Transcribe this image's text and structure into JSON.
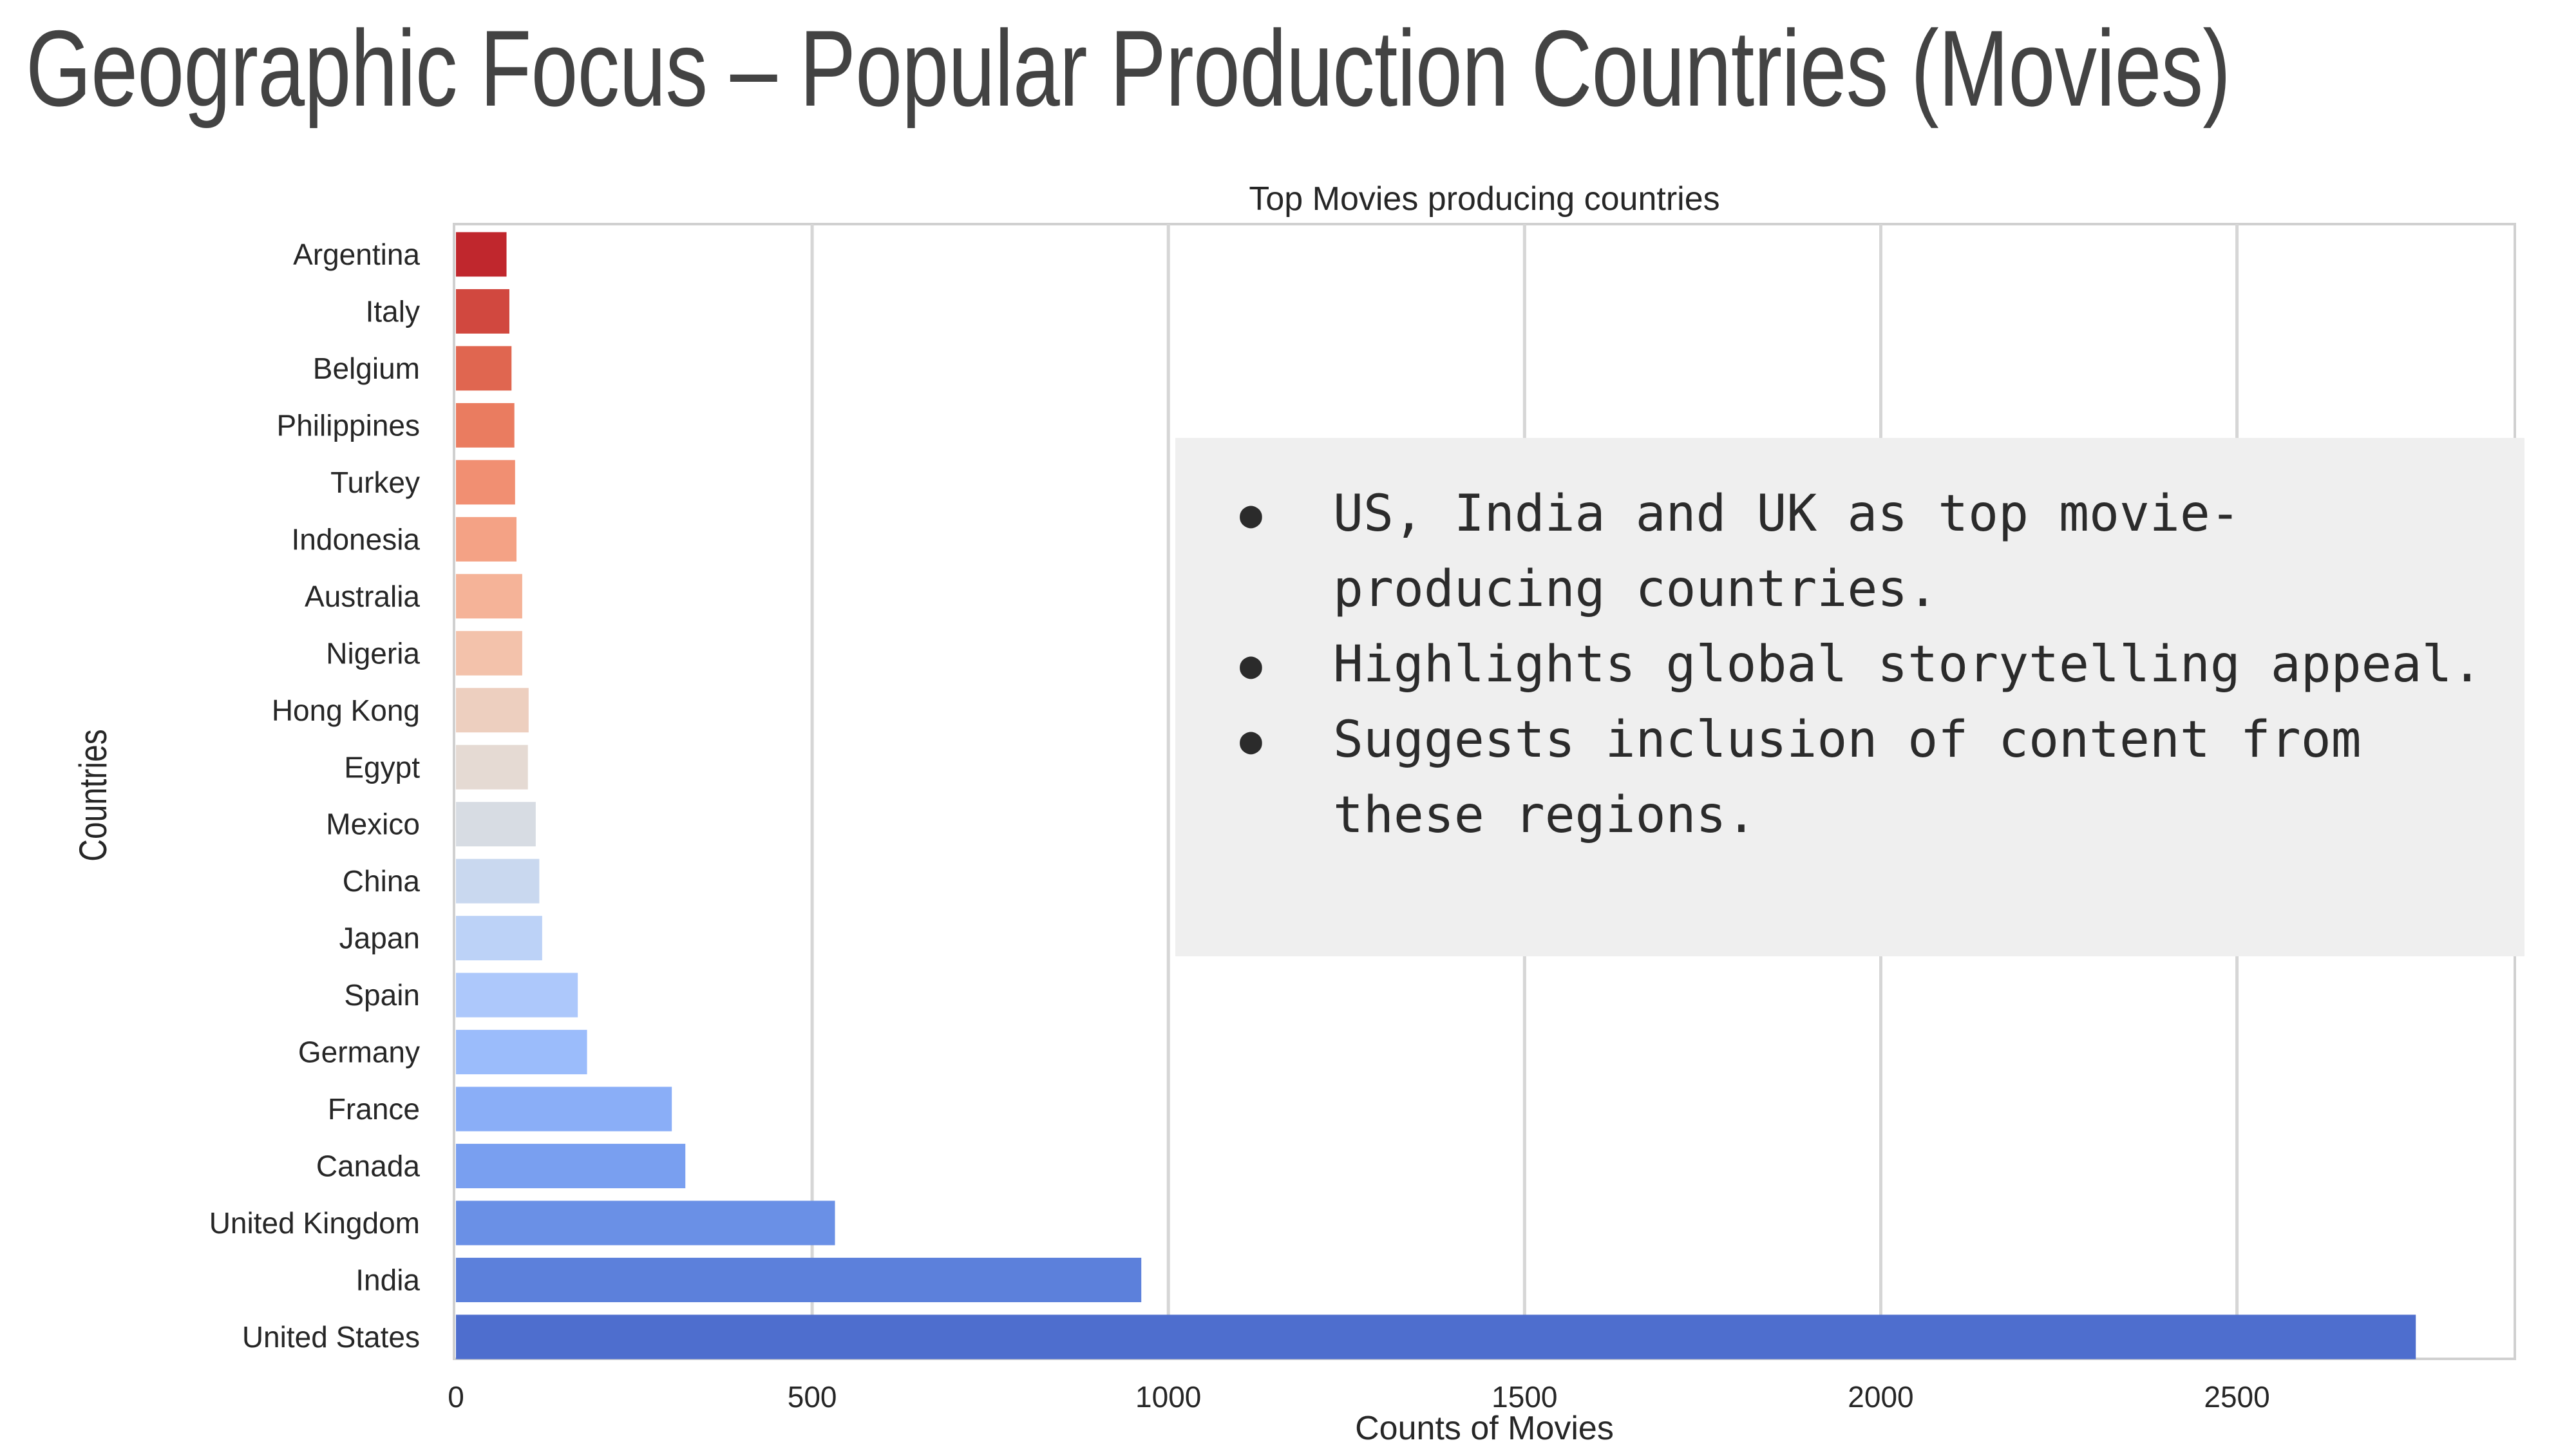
{
  "slide": {
    "title": "Geographic Focus – Popular Production Countries (Movies)"
  },
  "callout": {
    "bullets": [
      "US, India and UK as top movie-producing countries.",
      "Highlights global storytelling appeal.",
      "Suggests inclusion of content from these regions."
    ]
  },
  "chart_data": {
    "type": "bar",
    "orientation": "horizontal",
    "title": "Top Movies producing countries",
    "xlabel": "Counts of Movies",
    "ylabel": "Countries",
    "xlim": [
      0,
      2890
    ],
    "xticks": [
      0,
      500,
      1000,
      1500,
      2000,
      2500
    ],
    "grid": true,
    "categories": [
      "Argentina",
      "Italy",
      "Belgium",
      "Philippines",
      "Turkey",
      "Indonesia",
      "Australia",
      "Nigeria",
      "Hong Kong",
      "Egypt",
      "Mexico",
      "China",
      "Japan",
      "Spain",
      "Germany",
      "France",
      "Canada",
      "United Kingdom",
      "India",
      "United States"
    ],
    "values": [
      71,
      75,
      78,
      82,
      83,
      85,
      93,
      93,
      102,
      101,
      112,
      117,
      121,
      171,
      184,
      303,
      322,
      532,
      962,
      2751
    ],
    "colors": [
      "#c0272d",
      "#d1483f",
      "#e06650",
      "#ea7c60",
      "#f18f72",
      "#f4a285",
      "#f5b398",
      "#f3c2ab",
      "#edcfbf",
      "#e5dad3",
      "#d7dce3",
      "#c9d8ef",
      "#bcd2f7",
      "#adc8fb",
      "#9bbcfb",
      "#8aaef7",
      "#799ff0",
      "#6a90e6",
      "#5c80db",
      "#4e6ece"
    ]
  }
}
